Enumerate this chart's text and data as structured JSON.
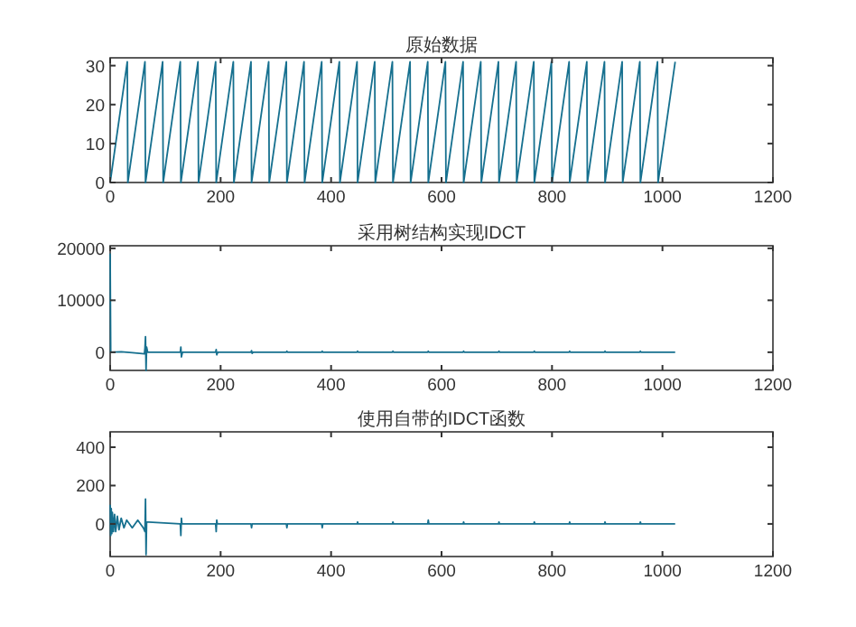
{
  "chart_data": [
    {
      "type": "line",
      "title": "原始数据",
      "xlim": [
        0,
        1200
      ],
      "ylim": [
        0,
        32
      ],
      "xticks": [
        0,
        200,
        400,
        600,
        800,
        1000,
        1200
      ],
      "yticks": [
        0,
        10,
        20,
        30
      ],
      "grid": false,
      "series": [
        {
          "color": "#16708f",
          "x": [
            0,
            31,
            32,
            63,
            64,
            95,
            96,
            127,
            128,
            159,
            160,
            191,
            192,
            223,
            224,
            255,
            256,
            287,
            288,
            319,
            320,
            351,
            352,
            383,
            384,
            415,
            416,
            447,
            448,
            479,
            480,
            511,
            512,
            543,
            544,
            575,
            576,
            607,
            608,
            639,
            640,
            671,
            672,
            703,
            704,
            735,
            736,
            767,
            768,
            799,
            800,
            831,
            832,
            863,
            864,
            895,
            896,
            927,
            928,
            959,
            960,
            991,
            992,
            1023
          ],
          "values": [
            0,
            31,
            0,
            31,
            0,
            31,
            0,
            31,
            0,
            31,
            0,
            31,
            0,
            31,
            0,
            31,
            0,
            31,
            0,
            31,
            0,
            31,
            0,
            31,
            0,
            31,
            0,
            31,
            0,
            31,
            0,
            31,
            0,
            31,
            0,
            31,
            0,
            31,
            0,
            31,
            0,
            31,
            0,
            31,
            0,
            31,
            0,
            31,
            0,
            31,
            0,
            31,
            0,
            31,
            0,
            31,
            0,
            31,
            0,
            31,
            0,
            31,
            0,
            31
          ]
        }
      ]
    },
    {
      "type": "line",
      "title": "采用树结构实现IDCT",
      "xlim": [
        0,
        1200
      ],
      "ylim": [
        -3500,
        20500
      ],
      "xticks": [
        0,
        200,
        400,
        600,
        800,
        1000,
        1200
      ],
      "yticks": [
        0,
        10000,
        20000
      ],
      "grid": false,
      "series": [
        {
          "color": "#16708f",
          "x": [
            0,
            1,
            20,
            40,
            62,
            63,
            64,
            65,
            66,
            68,
            127,
            128,
            129,
            131,
            191,
            192,
            193,
            195,
            255,
            256,
            257,
            259,
            319,
            320,
            321,
            383,
            384,
            385,
            447,
            448,
            449,
            511,
            512,
            513,
            575,
            576,
            577,
            639,
            640,
            641,
            703,
            704,
            705,
            767,
            768,
            769,
            831,
            832,
            833,
            895,
            896,
            897,
            959,
            960,
            961,
            1023
          ],
          "values": [
            19000,
            0,
            100,
            -100,
            -300,
            800,
            3000,
            -3500,
            1000,
            0,
            0,
            1000,
            -900,
            0,
            0,
            500,
            -500,
            0,
            0,
            300,
            -200,
            0,
            0,
            200,
            0,
            0,
            200,
            0,
            0,
            200,
            0,
            0,
            200,
            0,
            0,
            200,
            0,
            0,
            200,
            0,
            0,
            200,
            0,
            0,
            200,
            0,
            0,
            200,
            0,
            0,
            200,
            0,
            0,
            200,
            0,
            0
          ]
        }
      ]
    },
    {
      "type": "line",
      "title": "使用自带的IDCT函数",
      "xlim": [
        0,
        1200
      ],
      "ylim": [
        -170,
        480
      ],
      "xticks": [
        0,
        200,
        400,
        600,
        800,
        1000,
        1200
      ],
      "yticks": [
        0,
        200,
        400
      ],
      "grid": false,
      "series": [
        {
          "color": "#16708f",
          "x": [
            0,
            1,
            2,
            3,
            4,
            6,
            8,
            10,
            13,
            16,
            20,
            25,
            30,
            40,
            50,
            60,
            63,
            64,
            65,
            66,
            70,
            127,
            128,
            129,
            130,
            191,
            192,
            193,
            194,
            255,
            256,
            257,
            319,
            320,
            321,
            383,
            384,
            385,
            447,
            448,
            449,
            511,
            512,
            513,
            575,
            576,
            577,
            639,
            640,
            641,
            703,
            704,
            705,
            767,
            768,
            769,
            831,
            832,
            833,
            895,
            896,
            897,
            959,
            960,
            961,
            1023
          ],
          "values": [
            100,
            -60,
            80,
            -50,
            60,
            -40,
            50,
            -40,
            40,
            -30,
            30,
            -20,
            20,
            -20,
            20,
            -20,
            -40,
            130,
            -160,
            10,
            10,
            0,
            -60,
            30,
            0,
            0,
            -40,
            20,
            0,
            0,
            -20,
            0,
            0,
            -20,
            0,
            0,
            -20,
            0,
            0,
            10,
            0,
            0,
            10,
            0,
            0,
            20,
            0,
            0,
            10,
            0,
            0,
            10,
            0,
            0,
            10,
            0,
            0,
            10,
            0,
            0,
            10,
            0,
            0,
            10,
            0,
            0
          ]
        }
      ]
    }
  ]
}
